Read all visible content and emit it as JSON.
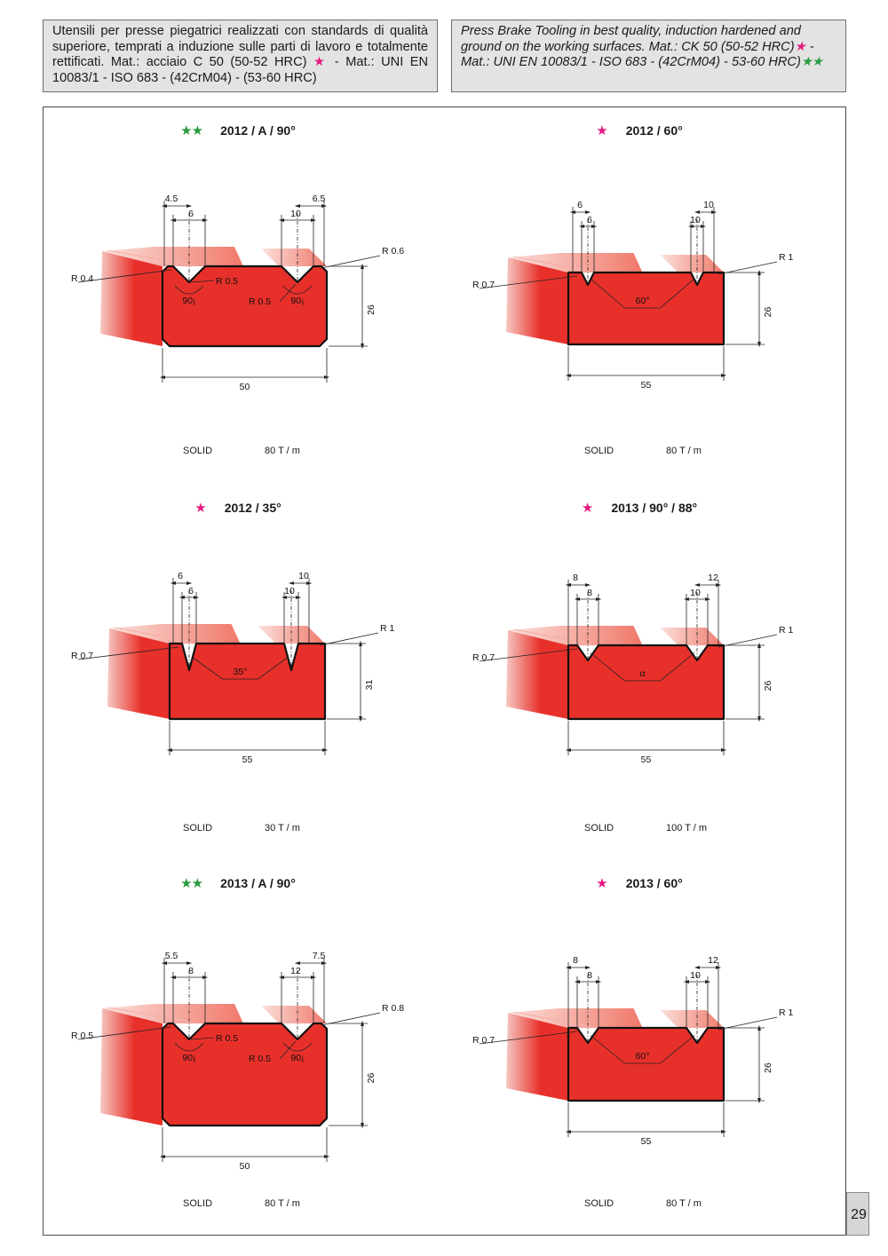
{
  "header": {
    "it_text": "Utensili per presse piegatrici realizzati con standards di qualità superiore, temprati a induzione sulle parti di lavoro e totalmente rettificati. Mat.: acciaio C 50 (50-52 HRC)",
    "it_star1": "★",
    "it_text2": " - Mat.: UNI EN 10083/1 - ISO 683 - (42CrM04) - (53-60 HRC)",
    "en_text": "Press Brake Tooling in best quality, induction hardened and ground on the working surfaces. Mat.: CK 50 (50-52 HRC)",
    "en_star1": "★",
    "en_text2": " - Mat.: UNI EN 10083/1 - ISO 683 - (42CrM04) - 53-60 HRC)",
    "en_star2": "★★"
  },
  "page_number": "29",
  "colors": {
    "tool_red": "#e8302a",
    "pink_star": "#e6197e",
    "green_star": "#2a9a3e"
  },
  "panels": [
    {
      "id": "p1",
      "stars": "★★",
      "star_color": "green",
      "title": "2012 / A / 90°",
      "solid": "SOLID",
      "load": "80 T / m",
      "dims": {
        "top_left_1": "4.5",
        "top_left_2": "6",
        "top_right_1": "10",
        "top_right_2": "6.5",
        "r_left": "R 0.4",
        "r_groove_a": "R 0.5",
        "r_groove_b": "R 0.5",
        "r_right": "R 0.6",
        "angle_a": "90¡",
        "angle_b": "90¡",
        "height": "26",
        "width": "50"
      }
    },
    {
      "id": "p2",
      "stars": "★",
      "star_color": "pink",
      "title": "2012 / 60°",
      "solid": "SOLID",
      "load": "80 T / m",
      "dims": {
        "top_left_1": "6",
        "top_left_2": "6",
        "top_right_1": "10",
        "top_right_2": "10",
        "r_left": "R 0.7",
        "r_right": "R 1",
        "angle": "60°",
        "height": "26",
        "width": "55"
      }
    },
    {
      "id": "p3",
      "stars": "★",
      "star_color": "pink",
      "title": "2012 / 35°",
      "solid": "SOLID",
      "load": "30 T / m",
      "dims": {
        "top_left_1": "6",
        "top_left_2": "6",
        "top_right_1": "10",
        "top_right_2": "10",
        "r_left": "R 0.7",
        "r_right": "R 1",
        "angle": "35°",
        "height": "31",
        "width": "55"
      }
    },
    {
      "id": "p4",
      "stars": "★",
      "star_color": "pink",
      "title": "2013 / 90° / 88°",
      "solid": "SOLID",
      "load": "100 T / m",
      "dims": {
        "top_left_1": "8",
        "top_left_2": "8",
        "top_right_1": "10",
        "top_right_2": "12",
        "r_left": "R 0.7",
        "r_right": "R 1",
        "angle": "α",
        "height": "26",
        "width": "55"
      }
    },
    {
      "id": "p5",
      "stars": "★★",
      "star_color": "green",
      "title": "2013 / A / 90°",
      "solid": "SOLID",
      "load": "80 T / m",
      "dims": {
        "top_left_1": "5.5",
        "top_left_2": "8",
        "top_right_1": "12",
        "top_right_2": "7.5",
        "r_left": "R 0.5",
        "r_groove_a": "R 0.5",
        "r_groove_b": "R 0.5",
        "r_right": "R 0.8",
        "angle_a": "90¡",
        "angle_b": "90¡",
        "height": "26",
        "width": "50"
      }
    },
    {
      "id": "p6",
      "stars": "★",
      "star_color": "pink",
      "title": "2013 / 60°",
      "solid": "SOLID",
      "load": "80 T / m",
      "dims": {
        "top_left_1": "8",
        "top_left_2": "8",
        "top_right_1": "10",
        "top_right_2": "12",
        "r_left": "R 0.7",
        "r_right": "R 1",
        "angle": "60°",
        "height": "26",
        "width": "55"
      }
    }
  ]
}
